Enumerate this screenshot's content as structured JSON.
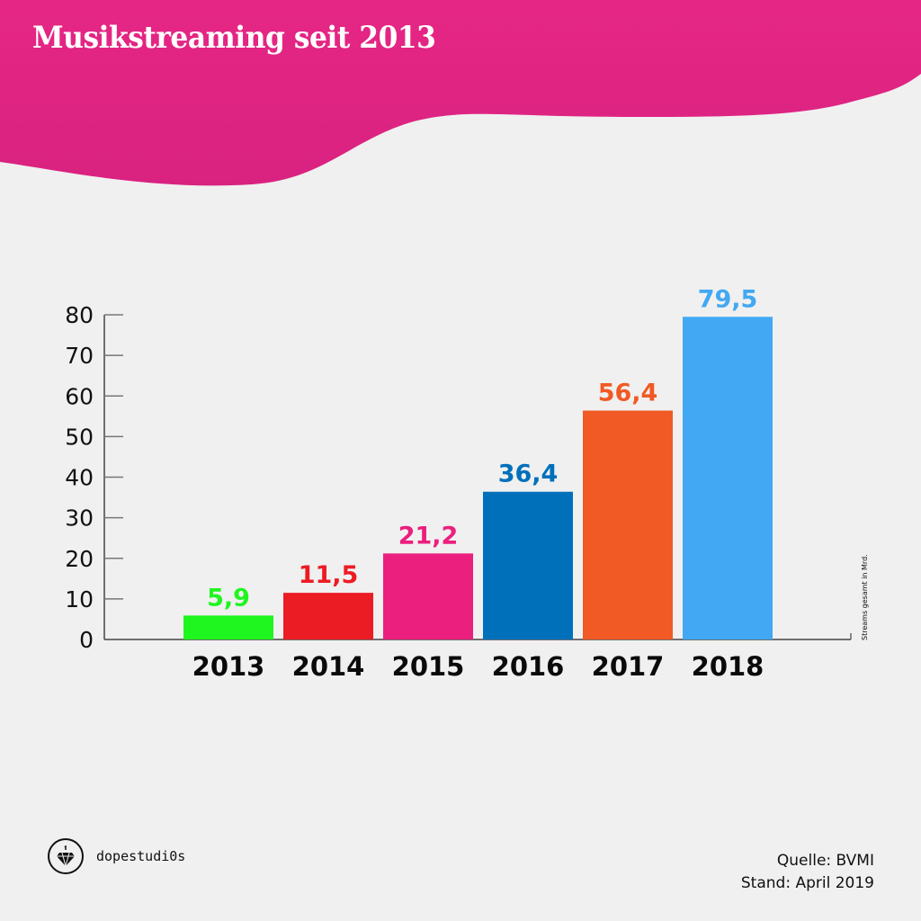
{
  "header": {
    "title": "Musikstreaming seit 2013"
  },
  "colors": {
    "brand": "#e62684",
    "background": "#f0f0f0",
    "axis": "#555555"
  },
  "chart_data": {
    "type": "bar",
    "title": "Musikstreaming seit 2013",
    "xlabel": "",
    "ylabel": "Streams gesamt in Mrd.",
    "ylim": [
      0,
      80
    ],
    "yticks": [
      0,
      10,
      20,
      30,
      40,
      50,
      60,
      70,
      80
    ],
    "grid": false,
    "categories": [
      "2013",
      "2014",
      "2015",
      "2016",
      "2017",
      "2018"
    ],
    "values": [
      5.9,
      11.5,
      21.2,
      36.4,
      56.4,
      79.5
    ],
    "value_labels": [
      "5,9",
      "11,5",
      "21,2",
      "36,4",
      "56,4",
      "79,5"
    ],
    "bar_colors": [
      "#1ff51f",
      "#ec1c24",
      "#eb1f7e",
      "#0070bb",
      "#f15a24",
      "#42a8f3"
    ]
  },
  "footer": {
    "logo_text": "dopestudi0s",
    "source": "Quelle: BVMI",
    "date": "Stand: April 2019"
  }
}
